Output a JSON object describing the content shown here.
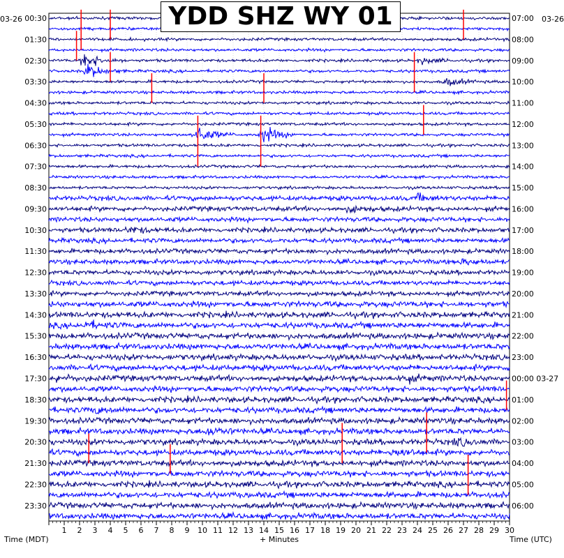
{
  "chart_data": {
    "type": "helicorder",
    "title": "YDD SHZ WY 01",
    "xlabel": "+ Minutes",
    "left_axis_title": "Time (MDT)",
    "right_axis_title": "Time (UTC)",
    "left_date": "03-26",
    "right_date_start": "03-26",
    "right_date_rollover": "03-27",
    "x_range": [
      0,
      30
    ],
    "x_ticks": [
      "1",
      "2",
      "3",
      "4",
      "5",
      "6",
      "7",
      "8",
      "9",
      "10",
      "11",
      "12",
      "13",
      "14",
      "15",
      "16",
      "17",
      "18",
      "19",
      "20",
      "21",
      "22",
      "23",
      "24",
      "25",
      "26",
      "27",
      "28",
      "29",
      "30"
    ],
    "left_times": [
      "00:30",
      "01:30",
      "02:30",
      "03:30",
      "04:30",
      "05:30",
      "06:30",
      "07:30",
      "08:30",
      "09:30",
      "10:30",
      "11:30",
      "12:30",
      "13:30",
      "14:30",
      "15:30",
      "16:30",
      "17:30",
      "18:30",
      "19:30",
      "20:30",
      "21:30",
      "22:30",
      "23:30"
    ],
    "right_times": [
      "07:00",
      "08:00",
      "09:00",
      "10:00",
      "11:00",
      "12:00",
      "13:00",
      "14:00",
      "15:00",
      "16:00",
      "17:00",
      "18:00",
      "19:00",
      "20:00",
      "21:00",
      "22:00",
      "23:00",
      "00:00 03-27",
      "01:00",
      "02:00",
      "03:00",
      "04:00",
      "05:00",
      "06:00"
    ],
    "trace_count": 48,
    "trace_colors": [
      "#00007f",
      "#0000ff"
    ],
    "clip_color": "#ff0000",
    "events": [
      {
        "hour": 5.5,
        "minute": 9.6,
        "amp": 10
      },
      {
        "hour": 5.5,
        "minute": 13.9,
        "amp": 9
      },
      {
        "hour": 2.0,
        "minute": 2.3,
        "amp": 8
      },
      {
        "hour": 2.5,
        "minute": 2.5,
        "amp": 7
      },
      {
        "hour": 3.0,
        "minute": 25.9,
        "amp": 4
      },
      {
        "hour": 2.0,
        "minute": 24.3,
        "amp": 3
      },
      {
        "hour": 8.5,
        "minute": 24.0,
        "amp": 3
      },
      {
        "hour": 9.0,
        "minute": 19.5,
        "amp": 3
      },
      {
        "hour": 10.0,
        "minute": 5.2,
        "amp": 3
      },
      {
        "hour": 11.5,
        "minute": 27.0,
        "amp": 3
      },
      {
        "hour": 14.5,
        "minute": 2.4,
        "amp": 3
      },
      {
        "hour": 17.0,
        "minute": 23.0,
        "amp": 3
      },
      {
        "hour": 17.0,
        "minute": 0.5,
        "amp": 2.5
      },
      {
        "hour": 18.5,
        "minute": 2.8,
        "amp": 3
      },
      {
        "hour": 19.5,
        "minute": 10.3,
        "amp": 4
      },
      {
        "hour": 20.5,
        "minute": 22.5,
        "amp": 4
      },
      {
        "hour": 20.0,
        "minute": 26.5,
        "amp": 3
      }
    ],
    "spikes": [
      {
        "hour": 0.0,
        "minute": 2.1,
        "len": 3
      },
      {
        "hour": 0.0,
        "minute": 4.0,
        "len": 2
      },
      {
        "hour": 0.0,
        "minute": 27.0,
        "len": 2
      },
      {
        "hour": 1.0,
        "minute": 1.8,
        "len": 2
      },
      {
        "hour": 2.0,
        "minute": 4.0,
        "len": 2
      },
      {
        "hour": 3.0,
        "minute": 6.7,
        "len": 2
      },
      {
        "hour": 3.0,
        "minute": 14.0,
        "len": 2
      },
      {
        "hour": 5.0,
        "minute": 9.7,
        "len": 4
      },
      {
        "hour": 5.0,
        "minute": 13.8,
        "len": 4
      },
      {
        "hour": 2.0,
        "minute": 23.8,
        "len": 3
      },
      {
        "hour": 4.5,
        "minute": 24.4,
        "len": 2
      },
      {
        "hour": 19.0,
        "minute": 24.6,
        "len": 3
      },
      {
        "hour": 19.5,
        "minute": 19.1,
        "len": 3
      },
      {
        "hour": 20.0,
        "minute": 2.6,
        "len": 2
      },
      {
        "hour": 20.5,
        "minute": 7.9,
        "len": 2
      },
      {
        "hour": 21.0,
        "minute": 27.3,
        "len": 3
      },
      {
        "hour": 17.5,
        "minute": 29.8,
        "len": 2
      }
    ]
  }
}
